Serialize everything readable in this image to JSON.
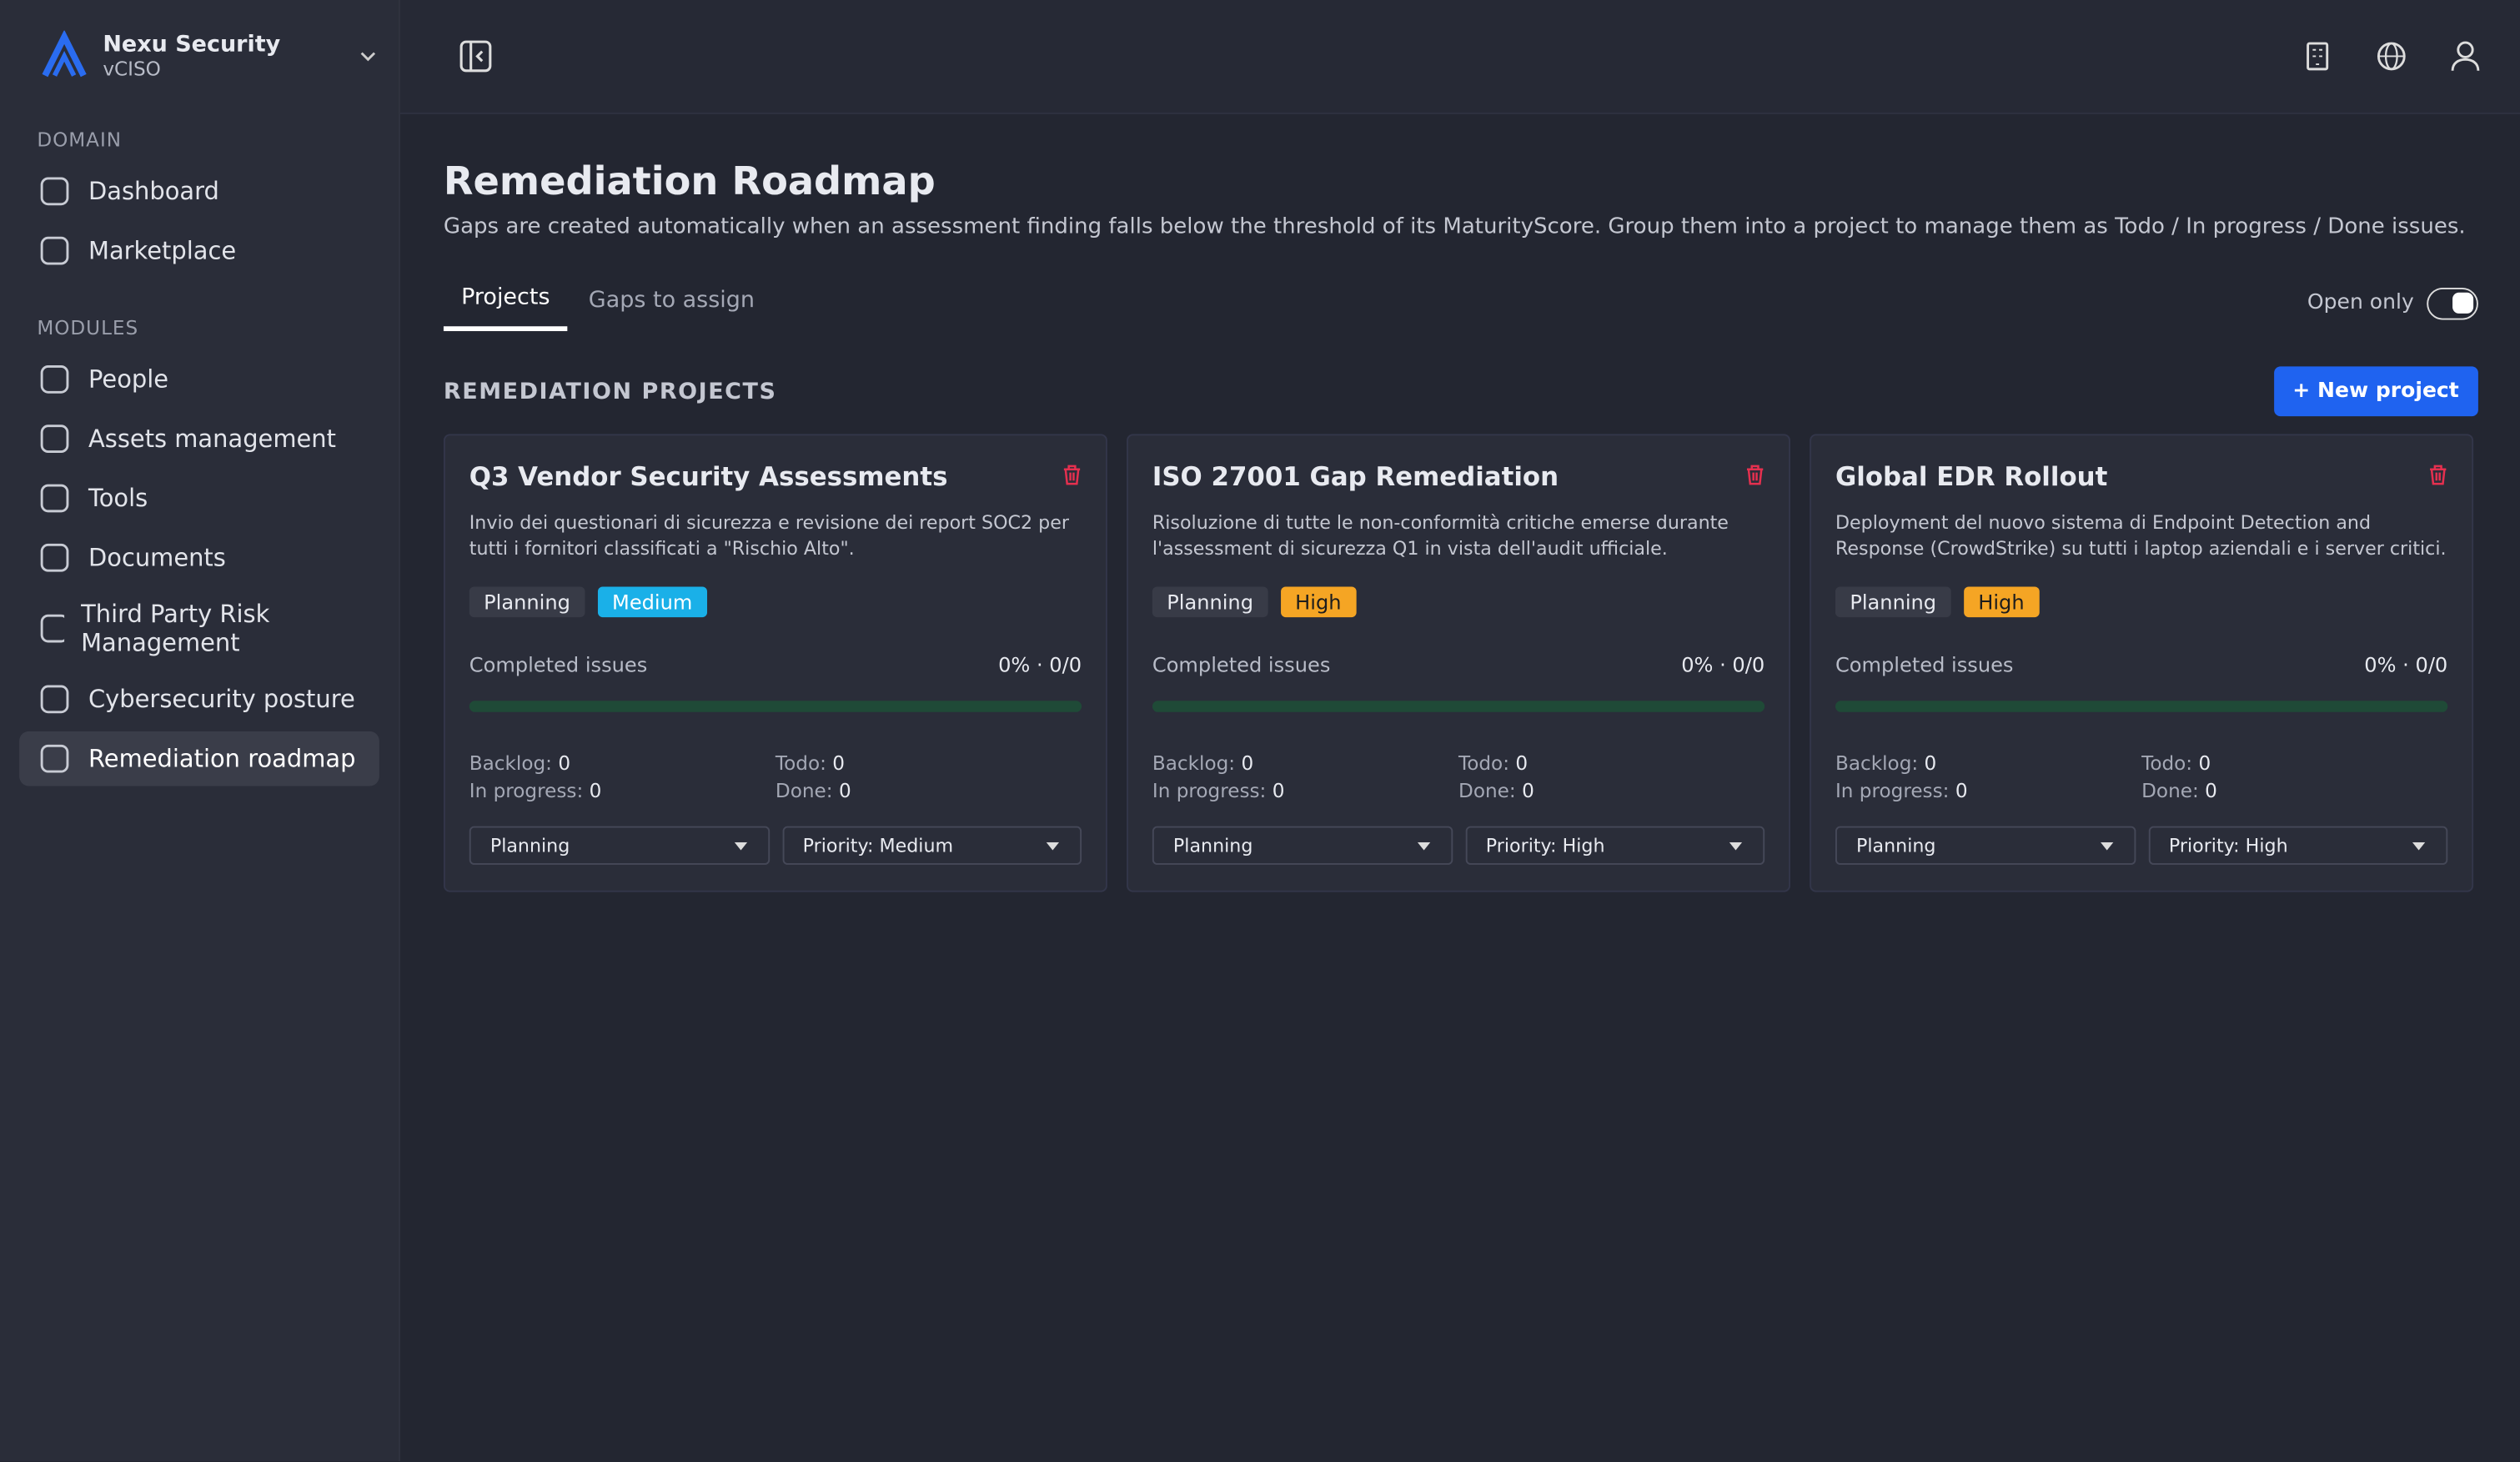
{
  "sidebar": {
    "org": {
      "name": "Nexu Security",
      "role": "vCISO"
    },
    "sections": [
      {
        "heading": "DOMAIN",
        "items": [
          {
            "label": "Dashboard"
          },
          {
            "label": "Marketplace"
          }
        ]
      },
      {
        "heading": "MODULES",
        "items": [
          {
            "label": "People"
          },
          {
            "label": "Assets management"
          },
          {
            "label": "Tools"
          },
          {
            "label": "Documents"
          },
          {
            "label": "Third Party Risk Management"
          },
          {
            "label": "Cybersecurity posture"
          },
          {
            "label": "Remediation roadmap",
            "active": true
          }
        ]
      }
    ]
  },
  "page": {
    "title": "Remediation Roadmap",
    "subtitle": "Gaps are created automatically when an assessment finding falls below the threshold of its MaturityScore. Group them into a project to manage them as Todo / In progress / Done issues.",
    "tabs": [
      {
        "label": "Projects",
        "active": true
      },
      {
        "label": "Gaps to assign"
      }
    ],
    "toggle": {
      "label": "Open only",
      "on": true
    },
    "section_title": "REMEDIATION PROJECTS",
    "new_button": "New project"
  },
  "projects": [
    {
      "title": "Q3 Vendor Security Assessments",
      "description": "Invio dei questionari di sicurezza e revisione dei report SOC2 per tutti i fornitori classificati a \"Rischio Alto\".",
      "status": "Planning",
      "priority": {
        "label": "Medium",
        "color": "#1ab0e8"
      },
      "progress_label": "Completed issues",
      "progress": "0% · 0/0",
      "stats": [
        {
          "label": "Backlog:",
          "value": 0
        },
        {
          "label": "Todo:",
          "value": 0
        },
        {
          "label": "In progress:",
          "value": 0
        },
        {
          "label": "Done:",
          "value": 0
        }
      ],
      "status_select": "Planning",
      "priority_select": "Priority: Medium"
    },
    {
      "title": "ISO 27001 Gap Remediation",
      "description": "Risoluzione di tutte le non-conformità critiche emerse durante l'assessment di sicurezza Q1 in vista dell'audit ufficiale.",
      "status": "Planning",
      "priority": {
        "label": "High",
        "color": "#f5a524"
      },
      "progress_label": "Completed issues",
      "progress": "0% · 0/0",
      "stats": [
        {
          "label": "Backlog:",
          "value": 0
        },
        {
          "label": "Todo:",
          "value": 0
        },
        {
          "label": "In progress:",
          "value": 0
        },
        {
          "label": "Done:",
          "value": 0
        }
      ],
      "status_select": "Planning",
      "priority_select": "Priority: High"
    },
    {
      "title": "Global EDR Rollout",
      "description": "Deployment del nuovo sistema di Endpoint Detection and Response (CrowdStrike) su tutti i laptop aziendali e i server critici.",
      "status": "Planning",
      "priority": {
        "label": "High",
        "color": "#f5a524"
      },
      "progress_label": "Completed issues",
      "progress": "0% · 0/0",
      "stats": [
        {
          "label": "Backlog:",
          "value": 0
        },
        {
          "label": "Todo:",
          "value": 0
        },
        {
          "label": "In progress:",
          "value": 0
        },
        {
          "label": "Done:",
          "value": 0
        }
      ],
      "status_select": "Planning",
      "priority_select": "Priority: High"
    }
  ]
}
